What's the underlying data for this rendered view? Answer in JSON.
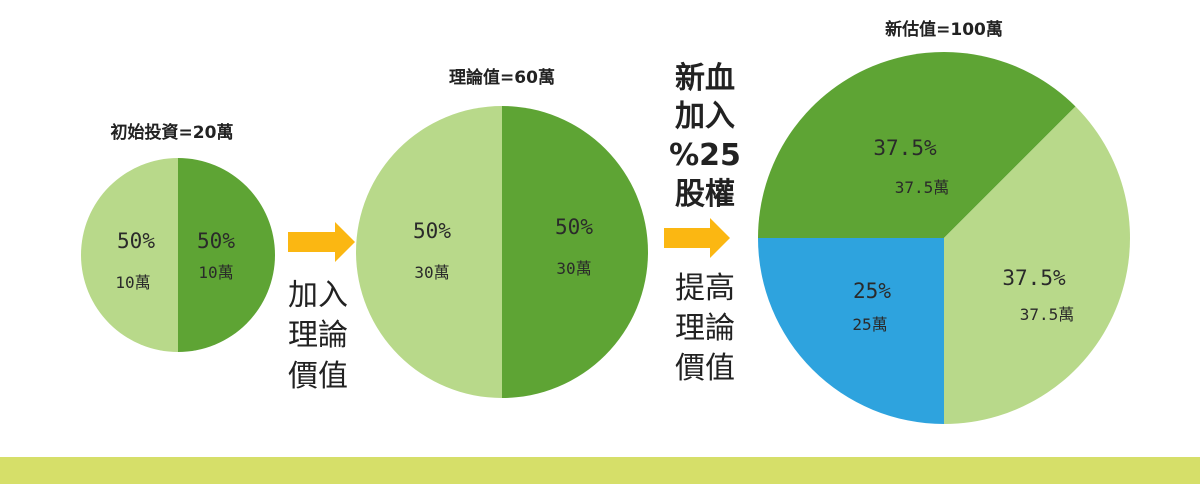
{
  "colors": {
    "green_dark": "#5ea434",
    "green_light": "#b8d98a",
    "blue": "#2ea3de",
    "arrow": "#fbb712",
    "footer": "#d6df69"
  },
  "steps": {
    "step1": [
      "加入",
      "理論",
      "價值"
    ],
    "step2_top": [
      "新血",
      "加入",
      "%25",
      "股權"
    ],
    "step2_bottom": [
      "提高",
      "理論",
      "價值"
    ]
  },
  "chart_data": [
    {
      "type": "pie",
      "title": "初始投資=20萬",
      "slices": [
        {
          "label": "10萬",
          "percent_label": "50%",
          "value": 10,
          "color": "#b8d98a"
        },
        {
          "label": "10萬",
          "percent_label": "50%",
          "value": 10,
          "color": "#5ea434"
        }
      ]
    },
    {
      "type": "pie",
      "title": "理論值=60萬",
      "slices": [
        {
          "label": "30萬",
          "percent_label": "50%",
          "value": 30,
          "color": "#b8d98a"
        },
        {
          "label": "30萬",
          "percent_label": "50%",
          "value": 30,
          "color": "#5ea434"
        }
      ]
    },
    {
      "type": "pie",
      "title": "新估值=100萬",
      "slices": [
        {
          "label": "37.5萬",
          "percent_label": "37.5%",
          "value": 37.5,
          "color": "#5ea434"
        },
        {
          "label": "37.5萬",
          "percent_label": "37.5%",
          "value": 37.5,
          "color": "#b8d98a"
        },
        {
          "label": "25萬",
          "percent_label": "25%",
          "value": 25,
          "color": "#2ea3de"
        }
      ]
    }
  ]
}
